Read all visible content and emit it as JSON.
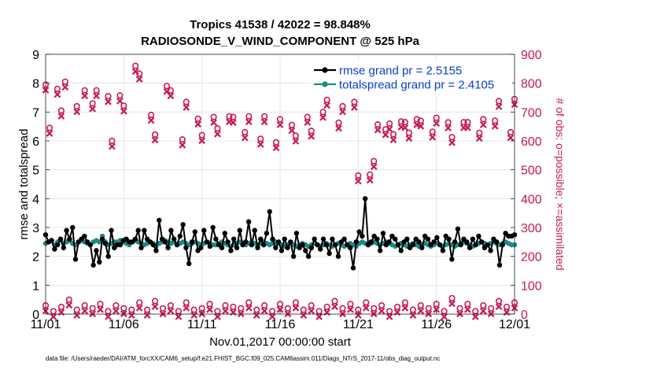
{
  "title_line1": "Tropics 41538 / 42022 = 98.848%",
  "title_line2": "RADIOSONDE_V_WIND_COMPONENT @ 525 hPa",
  "xlabel": "Nov.01,2017 00:00:00 start",
  "ylabel_left": "rmse and totalspread",
  "ylabel_right": "# of obs: o=possible; ×=assimilated",
  "footnote": "data file: /Users/raeder/DAI/ATM_forcXX/CAM6_setup/f.e21.FHIST_BGC.f09_025.CAM6assim.011/Diags_NTrS_2017-11/obs_diag_output.nc",
  "colors": {
    "rmse": "#000000",
    "spread": "#1a8a8a",
    "obs": "#c8184e",
    "legend_text": "#0a3dcc"
  },
  "chart_data": {
    "type": "line",
    "x_start_label": "11/01",
    "xticks": [
      "11/01",
      "11/06",
      "11/11",
      "11/16",
      "11/21",
      "11/26",
      "12/01"
    ],
    "xlim_days": [
      0,
      30
    ],
    "ylim_left": [
      0,
      9
    ],
    "yticks_left": [
      0,
      1,
      2,
      3,
      4,
      5,
      6,
      7,
      8,
      9
    ],
    "ylim_right": [
      0,
      900
    ],
    "yticks_right": [
      0,
      100,
      200,
      300,
      400,
      500,
      600,
      700,
      800,
      900
    ],
    "grid": true,
    "legend": [
      {
        "name": "rmse grand pr = 2.5155",
        "series": "rmse"
      },
      {
        "name": "totalspread grand pr = 2.4105",
        "series": "spread"
      }
    ],
    "series": [
      {
        "name": "rmse",
        "axis": "left",
        "values": [
          2.75,
          2.5,
          2.55,
          2.25,
          2.4,
          2.6,
          2.3,
          2.9,
          2.6,
          3.0,
          1.9,
          2.5,
          2.6,
          2.7,
          2.5,
          2.4,
          1.7,
          2.2,
          1.8,
          2.6,
          2.45,
          2.0,
          2.9,
          2.3,
          2.4,
          2.4,
          2.55,
          2.6,
          2.5,
          2.5,
          2.6,
          2.9,
          2.3,
          2.9,
          2.6,
          2.5,
          2.4,
          2.2,
          3.25,
          2.6,
          2.5,
          2.3,
          2.9,
          2.6,
          2.4,
          2.7,
          3.1,
          2.3,
          1.75,
          2.5,
          2.85,
          2.2,
          2.3,
          2.9,
          2.5,
          2.35,
          3.0,
          2.6,
          2.4,
          2.3,
          2.8,
          2.5,
          2.2,
          2.6,
          2.3,
          2.9,
          2.4,
          2.5,
          3.2,
          2.4,
          2.9,
          2.3,
          2.6,
          2.4,
          2.8,
          3.55,
          2.6,
          2.3,
          2.5,
          2.2,
          2.6,
          2.3,
          2.5,
          2.0,
          2.8,
          2.3,
          2.4,
          2.2,
          2.0,
          2.3,
          2.6,
          2.4,
          2.25,
          2.6,
          2.4,
          2.1,
          2.6,
          2.4,
          2.0,
          2.5,
          2.6,
          2.4,
          2.3,
          1.6,
          2.5,
          2.85,
          2.7,
          4.0,
          2.4,
          2.5,
          2.7,
          2.6,
          2.2,
          2.8,
          2.4,
          2.5,
          2.7,
          2.6,
          2.4,
          2.2,
          2.5,
          2.6,
          2.3,
          2.4,
          2.6,
          2.5,
          2.3,
          2.7,
          2.6,
          2.4,
          2.5,
          2.65,
          2.4,
          2.2,
          2.7,
          2.6,
          1.9,
          2.5,
          2.95,
          2.4,
          2.6,
          2.5,
          2.3,
          2.6,
          2.4,
          2.7,
          2.5,
          2.3,
          2.4,
          2.2,
          2.6,
          2.5,
          1.7,
          2.4,
          2.8,
          2.7,
          2.7,
          2.75
        ]
      },
      {
        "name": "totalspread",
        "axis": "left",
        "values": [
          2.45,
          2.5,
          2.55,
          2.4,
          2.5,
          2.55,
          2.45,
          2.5,
          2.55,
          2.45,
          2.4,
          2.5,
          2.55,
          2.5,
          2.45,
          2.4,
          2.5,
          2.55,
          2.5,
          2.7,
          2.5,
          2.4,
          2.45,
          2.5,
          2.5,
          2.55,
          2.5,
          2.45,
          2.4,
          2.5,
          2.55,
          2.5,
          2.45,
          2.4,
          2.45,
          2.5,
          2.45,
          2.35,
          2.45,
          2.5,
          2.55,
          2.5,
          2.45,
          2.5,
          2.4,
          2.45,
          2.5,
          2.45,
          2.4,
          2.45,
          2.5,
          2.45,
          2.4,
          2.45,
          2.5,
          2.45,
          2.4,
          2.4,
          2.45,
          2.5,
          2.45,
          2.4,
          2.35,
          2.4,
          2.45,
          2.5,
          2.45,
          2.4,
          2.45,
          2.5,
          2.45,
          2.4,
          2.45,
          2.5,
          2.45,
          2.4,
          2.45,
          2.5,
          2.45,
          2.4,
          2.35,
          2.4,
          2.45,
          2.4,
          2.35,
          2.4,
          2.45,
          2.4,
          2.35,
          2.4,
          2.45,
          2.4,
          2.35,
          2.4,
          2.45,
          2.4,
          2.35,
          2.4,
          2.45,
          2.4,
          2.35,
          2.4,
          2.45,
          2.4,
          2.35,
          2.45,
          2.5,
          2.45,
          2.4,
          2.45,
          2.5,
          2.45,
          2.4,
          2.45,
          2.5,
          2.45,
          2.4,
          2.35,
          2.4,
          2.45,
          2.4,
          2.35,
          2.4,
          2.45,
          2.4,
          2.35,
          2.4,
          2.45,
          2.4,
          2.35,
          2.4,
          2.45,
          2.4,
          2.35,
          2.4,
          2.45,
          2.4,
          2.35,
          2.4,
          2.45,
          2.5,
          2.45,
          2.4,
          2.35,
          2.4,
          2.45,
          2.5,
          2.45,
          2.4,
          2.45,
          2.5,
          2.45,
          2.4,
          2.45,
          2.5,
          2.45,
          2.4,
          2.4
        ]
      },
      {
        "name": "possible obs (high)",
        "axis": "right",
        "marker": "o",
        "x_days": [
          0.0,
          0.25,
          0.75,
          1.0,
          1.25,
          2.0,
          2.5,
          3.0,
          3.25,
          4.0,
          4.25,
          4.75,
          5.0,
          5.75,
          6.0,
          6.75,
          7.0,
          7.75,
          8.0,
          8.75,
          9.0,
          9.75,
          10.0,
          10.75,
          11.0,
          11.75,
          12.0,
          12.75,
          13.0,
          13.75,
          14.0,
          14.75,
          15.0,
          15.75,
          16.0,
          16.75,
          17.0,
          17.75,
          18.0,
          18.75,
          19.0,
          19.75,
          20.0,
          20.75,
          21.0,
          21.25,
          21.75,
          22.0,
          22.25,
          22.75,
          23.0,
          23.25,
          23.75,
          24.0,
          24.75,
          25.0,
          25.75,
          26.0,
          26.75,
          27.0,
          27.75,
          28.0,
          28.75,
          29.0,
          29.75,
          30.0
        ],
        "values": [
          795,
          645,
          780,
          705,
          805,
          720,
          775,
          730,
          775,
          755,
          600,
          757,
          722,
          860,
          833,
          690,
          622,
          790,
          775,
          605,
          735,
          677,
          620,
          683,
          643,
          685,
          683,
          630,
          685,
          607,
          685,
          595,
          675,
          655,
          618,
          683,
          635,
          700,
          742,
          663,
          720,
          735,
          480,
          483,
          530,
          657,
          640,
          660,
          623,
          667,
          665,
          628,
          675,
          670,
          632,
          680,
          664,
          613,
          665,
          665,
          628,
          675,
          670,
          738,
          630,
          745
        ]
      },
      {
        "name": "possible obs (low)",
        "axis": "right",
        "marker": "o",
        "x_days": [
          0.0,
          0.5,
          1.0,
          1.5,
          2.0,
          2.5,
          3.0,
          3.5,
          4.0,
          4.5,
          5.0,
          5.5,
          6.0,
          6.5,
          7.0,
          7.5,
          8.0,
          8.5,
          9.0,
          9.5,
          10.0,
          10.5,
          11.0,
          11.5,
          12.0,
          12.5,
          13.0,
          13.5,
          14.0,
          14.5,
          15.0,
          15.5,
          16.0,
          16.5,
          17.0,
          17.5,
          18.0,
          18.5,
          19.0,
          19.5,
          20.0,
          20.5,
          21.0,
          21.5,
          22.0,
          22.5,
          23.0,
          23.5,
          24.0,
          24.5,
          25.0,
          25.5,
          26.0,
          26.5,
          27.0,
          27.5,
          28.0,
          28.5,
          29.0,
          29.5,
          30.0
        ],
        "values": [
          30,
          10,
          25,
          50,
          15,
          30,
          20,
          35,
          10,
          30,
          20,
          15,
          40,
          15,
          45,
          20,
          30,
          10,
          40,
          15,
          20,
          35,
          10,
          30,
          25,
          20,
          40,
          15,
          30,
          10,
          35,
          20,
          40,
          15,
          30,
          10,
          25,
          45,
          20,
          35,
          15,
          40,
          20,
          30,
          10,
          25,
          40,
          15,
          30,
          20,
          35,
          10,
          55,
          20,
          35,
          10,
          30,
          20,
          45,
          25,
          40
        ]
      }
    ]
  }
}
